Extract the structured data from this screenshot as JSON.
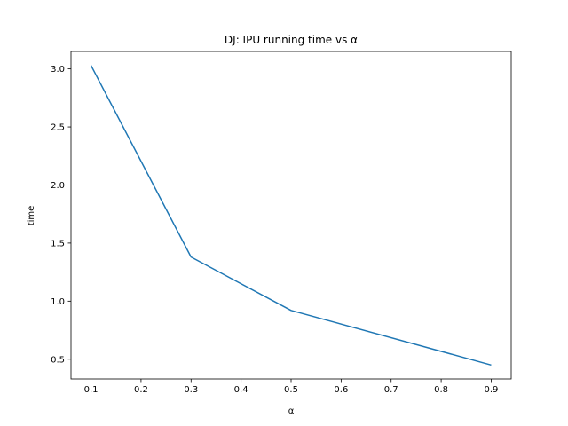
{
  "chart_data": {
    "type": "line",
    "title": "DJ: IPU running time vs α",
    "xlabel": "α",
    "ylabel": "time",
    "x_ticks": [
      "0.1",
      "0.2",
      "0.3",
      "0.4",
      "0.5",
      "0.6",
      "0.7",
      "0.8",
      "0.9"
    ],
    "y_ticks": [
      "0.5",
      "1.0",
      "1.5",
      "2.0",
      "2.5",
      "3.0"
    ],
    "xlim": [
      0.06,
      0.94
    ],
    "ylim": [
      0.33,
      3.15
    ],
    "grid": false,
    "series": [
      {
        "color": "#1f77b4",
        "x": [
          0.1,
          0.3,
          0.5,
          0.9
        ],
        "y": [
          3.03,
          1.38,
          0.92,
          0.45
        ]
      }
    ]
  }
}
